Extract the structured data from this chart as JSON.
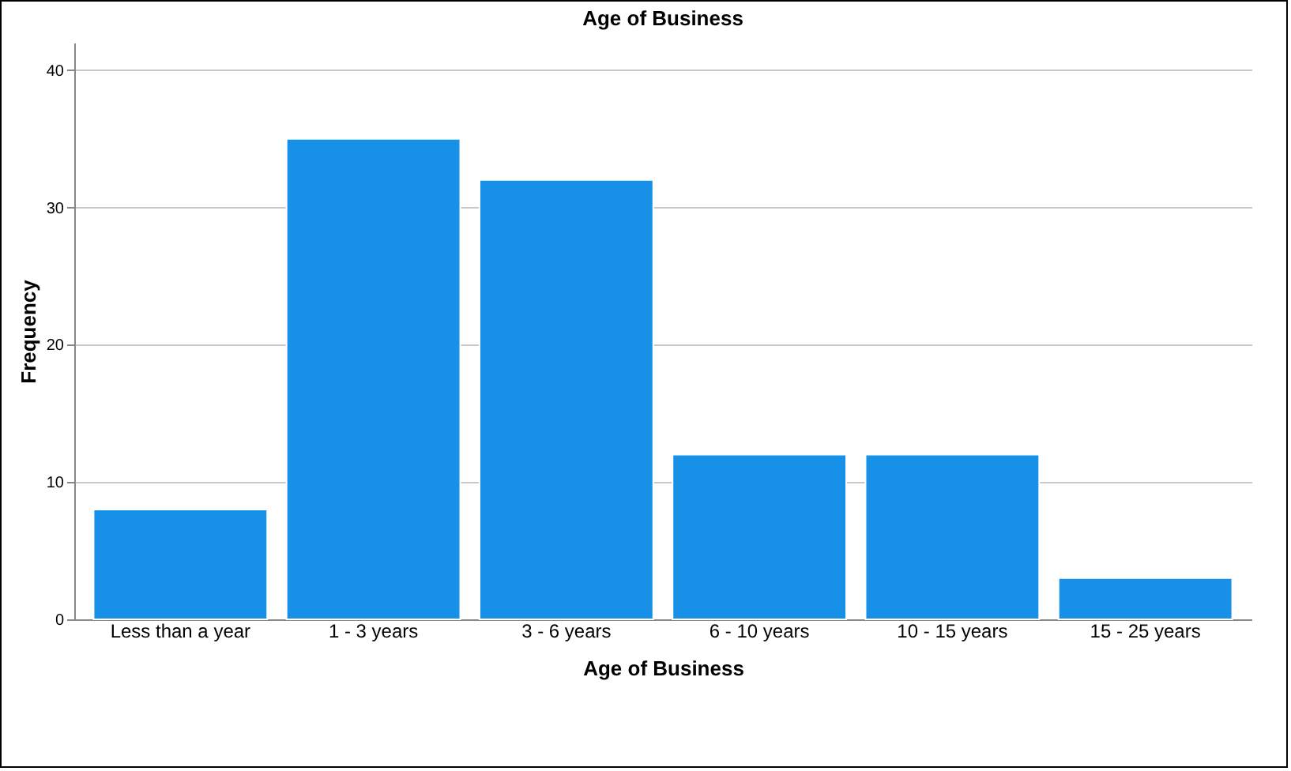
{
  "chart_data": {
    "type": "bar",
    "title": "Age of Business",
    "xlabel": "Age of Business",
    "ylabel": "Frequency",
    "categories": [
      "Less than a year",
      "1 - 3 years",
      "3 - 6 years",
      "6 - 10 years",
      "10 - 15 years",
      "15 - 25 years"
    ],
    "values": [
      8,
      35,
      32,
      12,
      12,
      3
    ],
    "color": "#1790e8",
    "ylim": [
      0,
      42
    ],
    "yticks": [
      0,
      10,
      20,
      30,
      40
    ],
    "grid": "y"
  }
}
